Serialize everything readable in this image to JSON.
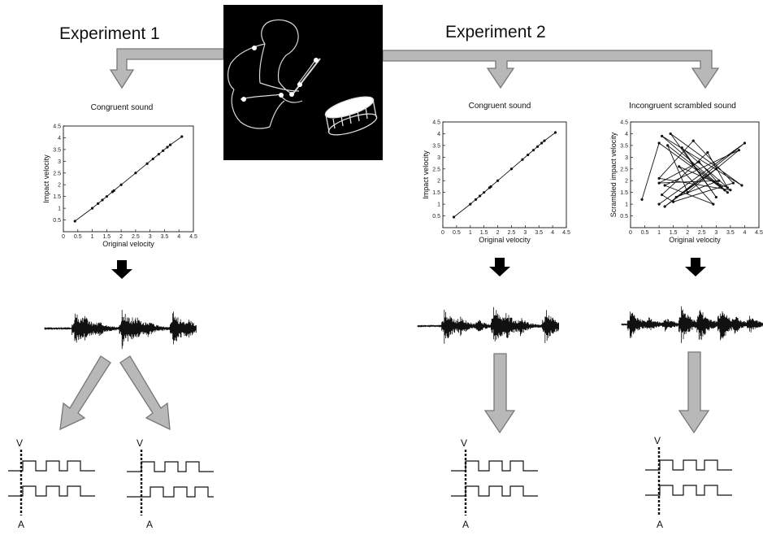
{
  "experiments": [
    {
      "title": "Experiment 1"
    },
    {
      "title": "Experiment 2"
    }
  ],
  "panels": [
    {
      "id": "p1",
      "title": "Congruent sound",
      "xlabel": "Original velocity",
      "ylabel": "Impact velocity"
    },
    {
      "id": "p2",
      "title": "Congruent sound",
      "xlabel": "Original velocity",
      "ylabel": "Impact velocity"
    },
    {
      "id": "p3",
      "title": "Incongruent scrambled sound",
      "xlabel": "Original velocity",
      "ylabel": "Scrambled impact velocity"
    }
  ],
  "signal_labels": {
    "visual": "V",
    "audio": "A"
  },
  "colors": {
    "arrow_fill": "#b8b8b8",
    "arrow_stroke": "#777777",
    "image_bg": "#000000"
  },
  "chart_data": [
    {
      "type": "line",
      "title": "Congruent sound",
      "xlabel": "Original velocity",
      "ylabel": "Impact velocity",
      "xlim": [
        0,
        4.5
      ],
      "ylim": [
        0,
        4.5
      ],
      "xticks": [
        "0",
        "0.5",
        "1",
        "1.5",
        "2",
        "2.5",
        "3",
        "3.5",
        "4",
        "4.5"
      ],
      "yticks": [
        "0.5",
        "1",
        "1.5",
        "2",
        "2.5",
        "3",
        "3.5",
        "4",
        "4.5"
      ],
      "series": [
        {
          "x": [
            0.4,
            1.0,
            1.2,
            1.35,
            1.5,
            1.7,
            1.75,
            2.0,
            2.5,
            2.9,
            3.1,
            3.3,
            3.45,
            3.6,
            3.7,
            4.1
          ],
          "y": [
            0.45,
            1.0,
            1.2,
            1.35,
            1.5,
            1.7,
            1.75,
            2.0,
            2.5,
            2.9,
            3.1,
            3.3,
            3.45,
            3.6,
            3.7,
            4.05
          ]
        }
      ]
    },
    {
      "type": "line",
      "title": "Congruent sound",
      "xlabel": "Original velocity",
      "ylabel": "Impact velocity",
      "xlim": [
        0,
        4.5
      ],
      "ylim": [
        0,
        4.5
      ],
      "xticks": [
        "0",
        "0.5",
        "1",
        "1.5",
        "2",
        "2.5",
        "3",
        "3.5",
        "4",
        "4.5"
      ],
      "yticks": [
        "0.5",
        "1",
        "1.5",
        "2",
        "2.5",
        "3",
        "3.5",
        "4",
        "4.5"
      ],
      "series": [
        {
          "x": [
            0.4,
            1.0,
            1.2,
            1.35,
            1.5,
            1.7,
            1.75,
            2.0,
            2.5,
            2.9,
            3.1,
            3.3,
            3.45,
            3.6,
            3.7,
            4.1
          ],
          "y": [
            0.45,
            1.0,
            1.2,
            1.35,
            1.5,
            1.7,
            1.75,
            2.0,
            2.5,
            2.9,
            3.1,
            3.3,
            3.45,
            3.6,
            3.7,
            4.05
          ]
        }
      ]
    },
    {
      "type": "line",
      "title": "Incongruent scrambled sound",
      "xlabel": "Original velocity",
      "ylabel": "Scrambled impact velocity",
      "xlim": [
        0,
        4.5
      ],
      "ylim": [
        0,
        4.5
      ],
      "xticks": [
        "0",
        "0.5",
        "1",
        "1.5",
        "2",
        "2.5",
        "3",
        "3.5",
        "4",
        "4.5"
      ],
      "yticks": [
        "0.5",
        "1",
        "1.5",
        "2",
        "2.5",
        "3",
        "3.5",
        "4",
        "4.5"
      ],
      "series": [
        {
          "x": [
            0.4,
            1.0,
            3.4,
            1.1,
            3.9,
            1.4,
            3.0,
            1.8,
            3.5,
            1.0,
            2.2,
            3.6,
            1.5,
            1.1,
            2.7,
            3.4,
            1.7,
            2.9,
            1.2,
            3.8,
            2.0,
            1.3,
            3.3,
            2.4,
            1.0,
            3.1,
            1.6,
            3.0,
            1.2,
            4.0,
            1.0
          ],
          "y": [
            1.2,
            3.6,
            1.5,
            3.9,
            1.8,
            4.0,
            1.3,
            3.4,
            1.6,
            2.1,
            3.7,
            1.9,
            1.1,
            1.4,
            3.2,
            1.7,
            2.6,
            1.0,
            1.8,
            3.3,
            1.5,
            3.5,
            1.6,
            2.8,
            1.9,
            2.0,
            1.3,
            2.5,
            0.9,
            3.6,
            1.0
          ]
        }
      ]
    }
  ]
}
